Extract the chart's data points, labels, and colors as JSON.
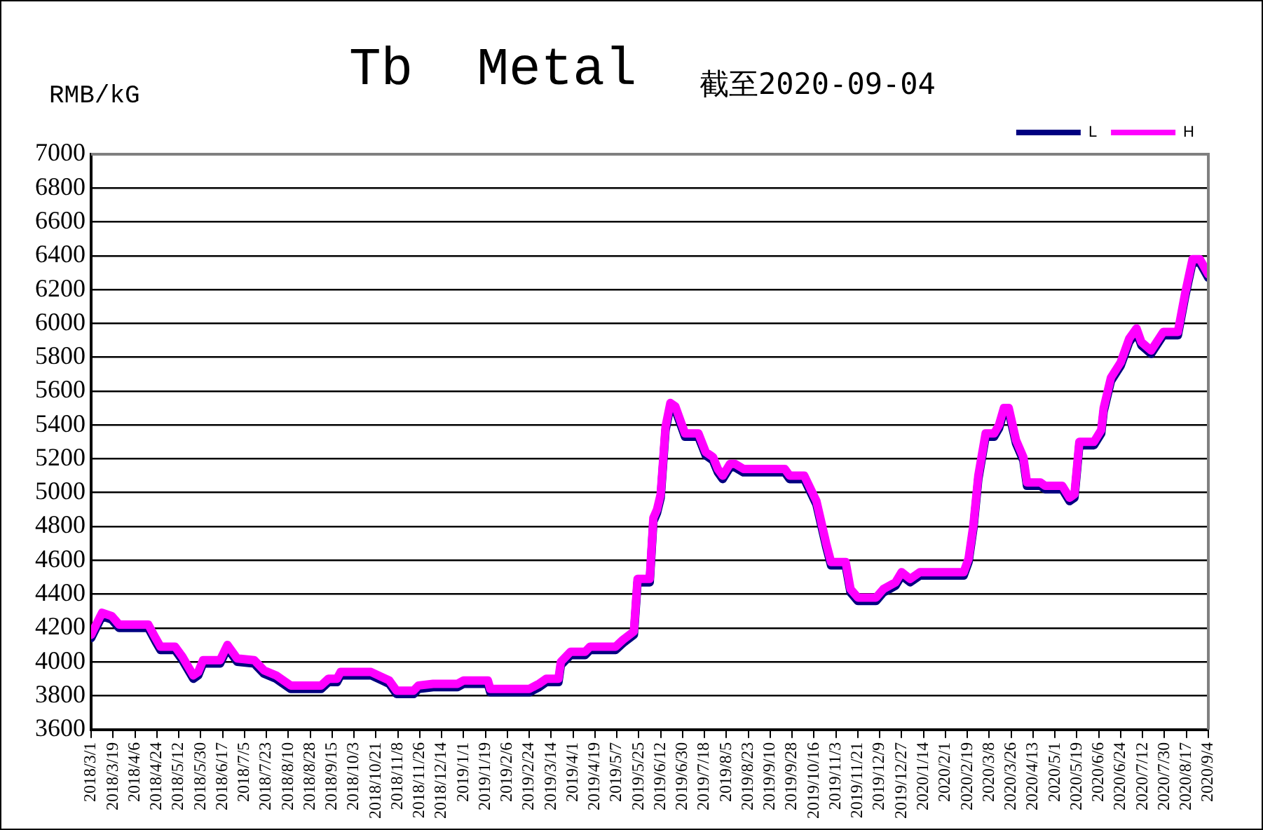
{
  "chart_data": {
    "type": "line",
    "title": "Tb  Metal",
    "subtitle": "截至2020-09-04",
    "ylabel": "RMB/kG",
    "x": [
      "2018-03-01",
      "2018-03-10",
      "2018-03-18",
      "2018-03-24",
      "2018-04-17",
      "2018-04-23",
      "2018-04-27",
      "2018-05-09",
      "2018-05-15",
      "2018-05-24",
      "2018-05-28",
      "2018-06-01",
      "2018-06-15",
      "2018-06-21",
      "2018-06-29",
      "2018-07-13",
      "2018-07-21",
      "2018-07-31",
      "2018-08-12",
      "2018-09-06",
      "2018-09-12",
      "2018-09-19",
      "2018-09-22",
      "2018-10-17",
      "2018-10-26",
      "2018-11-01",
      "2018-11-07",
      "2018-11-21",
      "2018-11-25",
      "2018-12-07",
      "2018-12-27",
      "2019-01-01",
      "2019-01-21",
      "2019-01-23",
      "2019-02-24",
      "2019-03-04",
      "2019-03-10",
      "2019-03-20",
      "2019-03-22",
      "2019-03-30",
      "2019-04-11",
      "2019-04-15",
      "2019-05-06",
      "2019-05-12",
      "2019-05-21",
      "2019-05-24",
      "2019-06-03",
      "2019-06-06",
      "2019-06-09",
      "2019-06-12",
      "2019-06-16",
      "2019-06-20",
      "2019-06-24",
      "2019-07-02",
      "2019-07-13",
      "2019-07-19",
      "2019-07-25",
      "2019-07-29",
      "2019-08-02",
      "2019-08-08",
      "2019-08-12",
      "2019-08-19",
      "2019-09-22",
      "2019-09-26",
      "2019-10-08",
      "2019-10-14",
      "2019-10-18",
      "2019-10-26",
      "2019-10-30",
      "2019-11-11",
      "2019-11-15",
      "2019-11-21",
      "2019-12-06",
      "2019-12-12",
      "2019-12-22",
      "2019-12-27",
      "2020-01-03",
      "2020-01-11",
      "2020-02-16",
      "2020-02-20",
      "2020-02-24",
      "2020-02-28",
      "2020-03-05",
      "2020-03-12",
      "2020-03-16",
      "2020-03-20",
      "2020-03-24",
      "2020-03-30",
      "2020-04-05",
      "2020-04-08",
      "2020-04-19",
      "2020-04-23",
      "2020-05-07",
      "2020-05-13",
      "2020-05-17",
      "2020-05-21",
      "2020-06-02",
      "2020-06-08",
      "2020-06-10",
      "2020-06-16",
      "2020-06-24",
      "2020-07-01",
      "2020-07-07",
      "2020-07-11",
      "2020-07-19",
      "2020-07-29",
      "2020-08-10",
      "2020-08-16",
      "2020-08-22",
      "2020-08-28",
      "2020-09-04"
    ],
    "series": [
      {
        "name": "L",
        "color": "#000080",
        "values": [
          4140,
          4270,
          4250,
          4200,
          4200,
          4120,
          4070,
          4070,
          4010,
          3900,
          3920,
          3990,
          3990,
          4080,
          4000,
          3990,
          3930,
          3900,
          3840,
          3840,
          3880,
          3880,
          3920,
          3920,
          3890,
          3870,
          3810,
          3810,
          3840,
          3850,
          3850,
          3870,
          3870,
          3820,
          3820,
          3850,
          3880,
          3880,
          3980,
          4040,
          4040,
          4070,
          4070,
          4110,
          4160,
          4470,
          4470,
          4830,
          4880,
          4970,
          5370,
          5510,
          5490,
          5330,
          5330,
          5220,
          5190,
          5120,
          5080,
          5150,
          5150,
          5120,
          5120,
          5080,
          5080,
          4990,
          4930,
          4680,
          4570,
          4570,
          4410,
          4360,
          4360,
          4410,
          4450,
          4510,
          4470,
          4510,
          4510,
          4590,
          4790,
          5080,
          5330,
          5330,
          5380,
          5480,
          5480,
          5290,
          5190,
          5040,
          5040,
          5020,
          5020,
          4950,
          4970,
          5280,
          5280,
          5350,
          5480,
          5660,
          5750,
          5890,
          5950,
          5870,
          5820,
          5930,
          5930,
          6160,
          6360,
          6360,
          6270
        ]
      },
      {
        "name": "H",
        "color": "#ff00ff",
        "values": [
          4160,
          4290,
          4270,
          4220,
          4220,
          4140,
          4090,
          4090,
          4030,
          3920,
          3940,
          4010,
          4010,
          4100,
          4020,
          4010,
          3950,
          3920,
          3860,
          3860,
          3900,
          3900,
          3940,
          3940,
          3910,
          3890,
          3830,
          3830,
          3860,
          3870,
          3870,
          3890,
          3890,
          3840,
          3840,
          3870,
          3900,
          3900,
          4000,
          4060,
          4060,
          4090,
          4090,
          4130,
          4180,
          4490,
          4490,
          4850,
          4900,
          4990,
          5390,
          5530,
          5510,
          5350,
          5350,
          5240,
          5210,
          5140,
          5100,
          5170,
          5170,
          5140,
          5140,
          5100,
          5100,
          5010,
          4950,
          4700,
          4590,
          4590,
          4430,
          4380,
          4380,
          4430,
          4470,
          4530,
          4490,
          4530,
          4530,
          4610,
          4810,
          5100,
          5350,
          5350,
          5400,
          5500,
          5500,
          5310,
          5210,
          5060,
          5060,
          5040,
          5040,
          4970,
          4990,
          5300,
          5300,
          5370,
          5500,
          5680,
          5770,
          5910,
          5970,
          5890,
          5840,
          5950,
          5950,
          6180,
          6380,
          6380,
          6290
        ]
      }
    ],
    "xlim": [
      "2018-03-01",
      "2020-09-04"
    ],
    "xticks": [
      {
        "value": "2018-03-01",
        "label": "2018/3/1"
      },
      {
        "value": "2018-03-19",
        "label": "2018/3/19"
      },
      {
        "value": "2018-04-06",
        "label": "2018/4/6"
      },
      {
        "value": "2018-04-24",
        "label": "2018/4/24"
      },
      {
        "value": "2018-05-12",
        "label": "2018/5/12"
      },
      {
        "value": "2018-05-30",
        "label": "2018/5/30"
      },
      {
        "value": "2018-06-17",
        "label": "2018/6/17"
      },
      {
        "value": "2018-07-05",
        "label": "2018/7/5"
      },
      {
        "value": "2018-07-23",
        "label": "2018/7/23"
      },
      {
        "value": "2018-08-10",
        "label": "2018/8/10"
      },
      {
        "value": "2018-08-28",
        "label": "2018/8/28"
      },
      {
        "value": "2018-09-15",
        "label": "2018/9/15"
      },
      {
        "value": "2018-10-03",
        "label": "2018/10/3"
      },
      {
        "value": "2018-10-21",
        "label": "2018/10/21"
      },
      {
        "value": "2018-11-08",
        "label": "2018/11/8"
      },
      {
        "value": "2018-11-26",
        "label": "2018/11/26"
      },
      {
        "value": "2018-12-14",
        "label": "2018/12/14"
      },
      {
        "value": "2019-01-01",
        "label": "2019/1/1"
      },
      {
        "value": "2019-01-19",
        "label": "2019/1/19"
      },
      {
        "value": "2019-02-06",
        "label": "2019/2/6"
      },
      {
        "value": "2019-02-24",
        "label": "2019/2/24"
      },
      {
        "value": "2019-03-14",
        "label": "2019/3/14"
      },
      {
        "value": "2019-04-01",
        "label": "2019/4/1"
      },
      {
        "value": "2019-04-19",
        "label": "2019/4/19"
      },
      {
        "value": "2019-05-07",
        "label": "2019/5/7"
      },
      {
        "value": "2019-05-25",
        "label": "2019/5/25"
      },
      {
        "value": "2019-06-12",
        "label": "2019/6/12"
      },
      {
        "value": "2019-06-30",
        "label": "2019/6/30"
      },
      {
        "value": "2019-07-18",
        "label": "2019/7/18"
      },
      {
        "value": "2019-08-05",
        "label": "2019/8/5"
      },
      {
        "value": "2019-08-23",
        "label": "2019/8/23"
      },
      {
        "value": "2019-09-10",
        "label": "2019/9/10"
      },
      {
        "value": "2019-09-28",
        "label": "2019/9/28"
      },
      {
        "value": "2019-10-16",
        "label": "2019/10/16"
      },
      {
        "value": "2019-11-03",
        "label": "2019/11/3"
      },
      {
        "value": "2019-11-21",
        "label": "2019/11/21"
      },
      {
        "value": "2019-12-09",
        "label": "2019/12/9"
      },
      {
        "value": "2019-12-27",
        "label": "2019/12/27"
      },
      {
        "value": "2020-01-14",
        "label": "2020/1/14"
      },
      {
        "value": "2020-02-01",
        "label": "2020/2/1"
      },
      {
        "value": "2020-02-19",
        "label": "2020/2/19"
      },
      {
        "value": "2020-03-08",
        "label": "2020/3/8"
      },
      {
        "value": "2020-03-26",
        "label": "2020/3/26"
      },
      {
        "value": "2020-04-13",
        "label": "2020/4/13"
      },
      {
        "value": "2020-05-01",
        "label": "2020/5/1"
      },
      {
        "value": "2020-05-19",
        "label": "2020/5/19"
      },
      {
        "value": "2020-06-06",
        "label": "2020/6/6"
      },
      {
        "value": "2020-06-24",
        "label": "2020/6/24"
      },
      {
        "value": "2020-07-12",
        "label": "2020/7/12"
      },
      {
        "value": "2020-07-30",
        "label": "2020/7/30"
      },
      {
        "value": "2020-08-17",
        "label": "2020/8/17"
      },
      {
        "value": "2020-09-04",
        "label": "2020/9/4"
      }
    ],
    "ylim": [
      3600,
      7000
    ],
    "yticks": [
      3600,
      3800,
      4000,
      4200,
      4400,
      4600,
      4800,
      5000,
      5200,
      5400,
      5600,
      5800,
      6000,
      6200,
      6400,
      6600,
      6800,
      7000
    ],
    "grid": "y",
    "legend": "top right"
  }
}
